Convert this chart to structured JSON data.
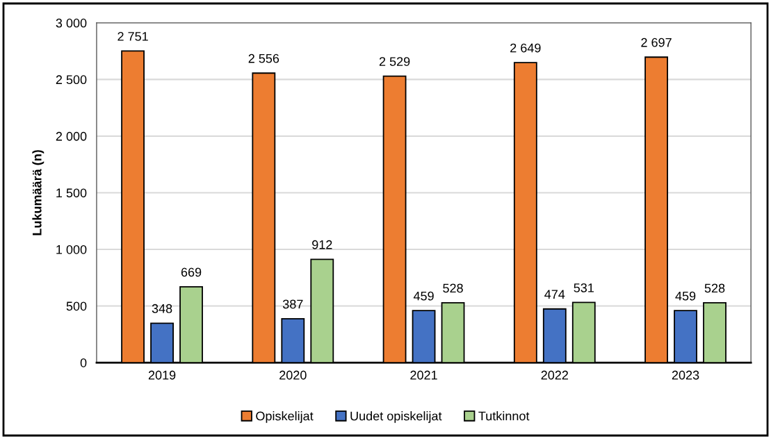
{
  "chart_data": {
    "type": "bar",
    "ylabel": "Lukumäärä (n)",
    "categories": [
      "2019",
      "2020",
      "2021",
      "2022",
      "2023"
    ],
    "series": [
      {
        "name": "Opiskelijat",
        "color": "#ed7d31",
        "values": [
          2751,
          2556,
          2529,
          2649,
          2697
        ],
        "value_labels": [
          "2 751",
          "2 556",
          "2 529",
          "2 649",
          "2 697"
        ]
      },
      {
        "name": "Uudet opiskelijat",
        "color": "#4472c4",
        "values": [
          348,
          387,
          459,
          474,
          459
        ],
        "value_labels": [
          "348",
          "387",
          "459",
          "474",
          "459"
        ]
      },
      {
        "name": "Tutkinnot",
        "color": "#a9d18e",
        "values": [
          669,
          912,
          528,
          531,
          528
        ],
        "value_labels": [
          "669",
          "912",
          "528",
          "531",
          "528"
        ]
      }
    ],
    "ylim": [
      0,
      3000
    ],
    "yticks": [
      {
        "value": 0,
        "label": "0"
      },
      {
        "value": 500,
        "label": "500"
      },
      {
        "value": 1000,
        "label": "1 000"
      },
      {
        "value": 1500,
        "label": "1 500"
      },
      {
        "value": 2000,
        "label": "2 000"
      },
      {
        "value": 2500,
        "label": "2 500"
      },
      {
        "value": 3000,
        "label": "3 000"
      }
    ],
    "grid": "y",
    "legend": "bottom"
  }
}
